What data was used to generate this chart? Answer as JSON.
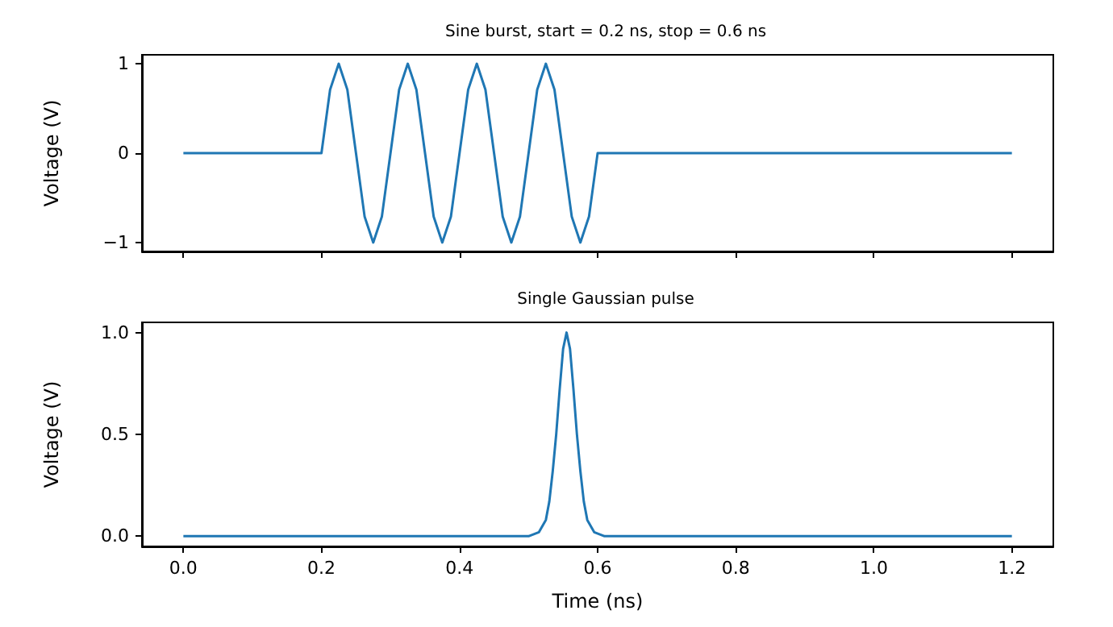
{
  "chart_data": [
    {
      "type": "line",
      "title": "Sine burst, start = 0.2 ns, stop = 0.6 ns",
      "ylabel": "Voltage (V)",
      "xlim": [
        -0.06,
        1.26
      ],
      "ylim": [
        -1.1,
        1.1
      ],
      "xticks": [
        {
          "value": 0,
          "label": null
        },
        {
          "value": 0.2,
          "label": null
        },
        {
          "value": 0.4,
          "label": null
        },
        {
          "value": 0.6,
          "label": null
        },
        {
          "value": 0.8,
          "label": null
        },
        {
          "value": 1.0,
          "label": null
        },
        {
          "value": 1.2,
          "label": null
        }
      ],
      "yticks": [
        {
          "value": -1,
          "label": "−1"
        },
        0,
        1
      ],
      "tick_labels": "y",
      "grid": false,
      "marker": "none",
      "line_style": "solid",
      "series": [
        {
          "color": "#1f77b4",
          "x": [
            0,
            0.2,
            0.2125,
            0.225,
            0.2375,
            0.25,
            0.2625,
            0.275,
            0.2875,
            0.3,
            0.3125,
            0.325,
            0.3375,
            0.35,
            0.3625,
            0.375,
            0.3875,
            0.4,
            0.4125,
            0.425,
            0.4375,
            0.45,
            0.4625,
            0.475,
            0.4875,
            0.5,
            0.5125,
            0.525,
            0.5375,
            0.55,
            0.5625,
            0.575,
            0.5875,
            0.6,
            1.2
          ],
          "values": [
            0,
            0,
            0.71,
            1,
            0.71,
            0,
            -0.71,
            -1,
            -0.71,
            0,
            0.71,
            1,
            0.71,
            0,
            -0.71,
            -1,
            -0.71,
            0,
            0.71,
            1,
            0.71,
            0,
            -0.71,
            -1,
            -0.71,
            0,
            0.71,
            1,
            0.71,
            0,
            -0.71,
            -1,
            -0.71,
            0,
            0
          ]
        }
      ]
    },
    {
      "type": "line",
      "title": "Single Gaussian pulse",
      "xlabel": "Time (ns)",
      "ylabel": "Voltage (V)",
      "xlim": [
        -0.06,
        1.26
      ],
      "ylim": [
        -0.05,
        1.05
      ],
      "xticks": [
        {
          "value": 0,
          "label": "0.0"
        },
        0.2,
        0.4,
        0.6,
        0.8,
        {
          "value": 1,
          "label": "1.0"
        },
        1.2
      ],
      "yticks": [
        {
          "value": 0,
          "label": "0.0"
        },
        0.5,
        {
          "value": 1,
          "label": "1.0"
        }
      ],
      "grid": false,
      "marker": "none",
      "line_style": "solid",
      "series": [
        {
          "color": "#1f77b4",
          "x": [
            0,
            0.5,
            0.515,
            0.525,
            0.53,
            0.535,
            0.54,
            0.545,
            0.55,
            0.555,
            0.56,
            0.565,
            0.57,
            0.575,
            0.58,
            0.585,
            0.595,
            0.61,
            1.2
          ],
          "values": [
            0,
            0,
            0.02,
            0.08,
            0.17,
            0.32,
            0.5,
            0.72,
            0.92,
            1,
            0.92,
            0.72,
            0.5,
            0.32,
            0.17,
            0.08,
            0.02,
            0,
            0
          ]
        }
      ]
    }
  ]
}
